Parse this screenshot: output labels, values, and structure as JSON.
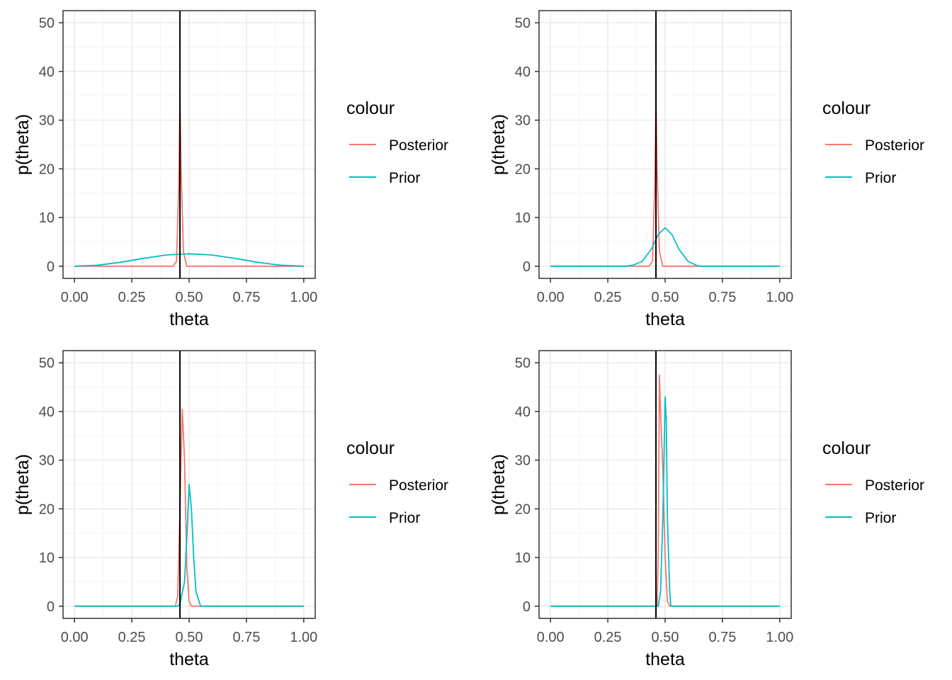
{
  "colors": {
    "posterior": "#F8766D",
    "prior": "#00BFC4",
    "vline": "#000000",
    "grid_major": "#EBEBEB",
    "grid_minor": "#F5F5F5",
    "panel_border": "#333333"
  },
  "chart_data": [
    {
      "type": "line",
      "xlabel": "theta",
      "ylabel": "p(theta)",
      "xlim": [
        0,
        1
      ],
      "ylim": [
        0,
        50
      ],
      "x_ticks": [
        "0.00",
        "0.25",
        "0.50",
        "0.75",
        "1.00"
      ],
      "y_ticks": [
        "0",
        "10",
        "20",
        "30",
        "40",
        "50"
      ],
      "grid": true,
      "legend": {
        "title": "colour",
        "position": "right",
        "entries": [
          "Posterior",
          "Prior"
        ]
      },
      "vline": 0.46,
      "series": [
        {
          "name": "Posterior",
          "color": "#F8766D",
          "points": [
            [
              0,
              0
            ],
            [
              0.43,
              0
            ],
            [
              0.445,
              1
            ],
            [
              0.455,
              17
            ],
            [
              0.46,
              35
            ],
            [
              0.465,
              20
            ],
            [
              0.475,
              3
            ],
            [
              0.49,
              0
            ],
            [
              1,
              0
            ]
          ]
        },
        {
          "name": "Prior",
          "color": "#00BFC4",
          "points": [
            [
              0,
              0
            ],
            [
              0.1,
              0.2
            ],
            [
              0.2,
              0.8
            ],
            [
              0.3,
              1.6
            ],
            [
              0.4,
              2.3
            ],
            [
              0.5,
              2.55
            ],
            [
              0.6,
              2.3
            ],
            [
              0.7,
              1.6
            ],
            [
              0.8,
              0.8
            ],
            [
              0.9,
              0.2
            ],
            [
              1,
              0
            ]
          ]
        }
      ]
    },
    {
      "type": "line",
      "xlabel": "theta",
      "ylabel": "p(theta)",
      "xlim": [
        0,
        1
      ],
      "ylim": [
        0,
        50
      ],
      "x_ticks": [
        "0.00",
        "0.25",
        "0.50",
        "0.75",
        "1.00"
      ],
      "y_ticks": [
        "0",
        "10",
        "20",
        "30",
        "40",
        "50"
      ],
      "grid": true,
      "legend": {
        "title": "colour",
        "position": "right",
        "entries": [
          "Posterior",
          "Prior"
        ]
      },
      "vline": 0.46,
      "series": [
        {
          "name": "Posterior",
          "color": "#F8766D",
          "points": [
            [
              0,
              0
            ],
            [
              0.43,
              0
            ],
            [
              0.445,
              1
            ],
            [
              0.455,
              17
            ],
            [
              0.46,
              35
            ],
            [
              0.465,
              20
            ],
            [
              0.475,
              3
            ],
            [
              0.49,
              0
            ],
            [
              1,
              0
            ]
          ]
        },
        {
          "name": "Prior",
          "color": "#00BFC4",
          "points": [
            [
              0,
              0
            ],
            [
              0.33,
              0
            ],
            [
              0.36,
              0.2
            ],
            [
              0.4,
              1
            ],
            [
              0.44,
              3.5
            ],
            [
              0.47,
              6.5
            ],
            [
              0.5,
              7.9
            ],
            [
              0.53,
              6.5
            ],
            [
              0.56,
              3.5
            ],
            [
              0.6,
              1
            ],
            [
              0.64,
              0.1
            ],
            [
              0.66,
              0
            ],
            [
              1,
              0
            ]
          ]
        }
      ]
    },
    {
      "type": "line",
      "xlabel": "theta",
      "ylabel": "p(theta)",
      "xlim": [
        0,
        1
      ],
      "ylim": [
        0,
        50
      ],
      "x_ticks": [
        "0.00",
        "0.25",
        "0.50",
        "0.75",
        "1.00"
      ],
      "y_ticks": [
        "0",
        "10",
        "20",
        "30",
        "40",
        "50"
      ],
      "grid": true,
      "legend": {
        "title": "colour",
        "position": "right",
        "entries": [
          "Posterior",
          "Prior"
        ]
      },
      "vline": 0.46,
      "series": [
        {
          "name": "Posterior",
          "color": "#F8766D",
          "points": [
            [
              0,
              0
            ],
            [
              0.44,
              0
            ],
            [
              0.45,
              2
            ],
            [
              0.46,
              20
            ],
            [
              0.47,
              40.5
            ],
            [
              0.48,
              30
            ],
            [
              0.49,
              8
            ],
            [
              0.5,
              1
            ],
            [
              0.51,
              0
            ],
            [
              1,
              0
            ]
          ]
        },
        {
          "name": "Prior",
          "color": "#00BFC4",
          "points": [
            [
              0,
              0
            ],
            [
              0.45,
              0
            ],
            [
              0.46,
              0.5
            ],
            [
              0.48,
              5
            ],
            [
              0.49,
              14
            ],
            [
              0.5,
              25
            ],
            [
              0.51,
              20
            ],
            [
              0.52,
              10
            ],
            [
              0.53,
              3
            ],
            [
              0.55,
              0
            ],
            [
              1,
              0
            ]
          ]
        }
      ]
    },
    {
      "type": "line",
      "xlabel": "theta",
      "ylabel": "p(theta)",
      "xlim": [
        0,
        1
      ],
      "ylim": [
        0,
        50
      ],
      "x_ticks": [
        "0.00",
        "0.25",
        "0.50",
        "0.75",
        "1.00"
      ],
      "y_ticks": [
        "0",
        "10",
        "20",
        "30",
        "40",
        "50"
      ],
      "grid": true,
      "legend": {
        "title": "colour",
        "position": "right",
        "entries": [
          "Posterior",
          "Prior"
        ]
      },
      "vline": 0.46,
      "series": [
        {
          "name": "Posterior",
          "color": "#F8766D",
          "points": [
            [
              0,
              0
            ],
            [
              0.465,
              0
            ],
            [
              0.47,
              10
            ],
            [
              0.475,
              47.5
            ],
            [
              0.48,
              40
            ],
            [
              0.49,
              28
            ],
            [
              0.5,
              10
            ],
            [
              0.51,
              1
            ],
            [
              0.52,
              0
            ],
            [
              1,
              0
            ]
          ]
        },
        {
          "name": "Prior",
          "color": "#00BFC4",
          "points": [
            [
              0,
              0
            ],
            [
              0.47,
              0
            ],
            [
              0.48,
              3
            ],
            [
              0.49,
              18
            ],
            [
              0.5,
              43
            ],
            [
              0.505,
              38
            ],
            [
              0.51,
              18
            ],
            [
              0.52,
              3
            ],
            [
              0.525,
              0
            ],
            [
              1,
              0
            ]
          ]
        }
      ]
    }
  ]
}
